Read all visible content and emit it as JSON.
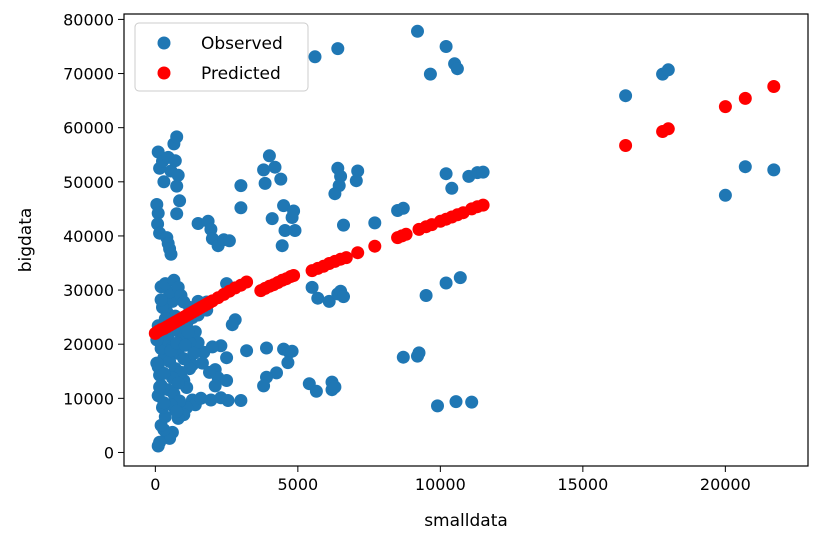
{
  "chart_data": {
    "type": "scatter",
    "xlabel": "smalldata",
    "ylabel": "bigdata",
    "xlim": [
      -1100,
      22900
    ],
    "ylim": [
      -2500,
      81000
    ],
    "xticks": [
      0,
      5000,
      10000,
      15000,
      20000
    ],
    "yticks": [
      0,
      10000,
      20000,
      30000,
      40000,
      50000,
      60000,
      70000,
      80000
    ],
    "grid": false,
    "legend_position": "top-left",
    "series": [
      {
        "name": "Observed",
        "color": "#1f77b4",
        "points": [
          [
            9200,
            77800
          ],
          [
            10200,
            75000
          ],
          [
            6400,
            74600
          ],
          [
            5600,
            73100
          ],
          [
            10500,
            71800
          ],
          [
            10600,
            70900
          ],
          [
            9650,
            69900
          ],
          [
            16500,
            65900
          ],
          [
            17800,
            69900
          ],
          [
            18000,
            70700
          ],
          [
            20000,
            47500
          ],
          [
            20700,
            52800
          ],
          [
            21700,
            52200
          ],
          [
            100,
            55500
          ],
          [
            150,
            52500
          ],
          [
            250,
            53800
          ],
          [
            300,
            50000
          ],
          [
            450,
            54500
          ],
          [
            550,
            52000
          ],
          [
            650,
            57000
          ],
          [
            750,
            58300
          ],
          [
            700,
            53900
          ],
          [
            800,
            51200
          ],
          [
            750,
            49200
          ],
          [
            850,
            46500
          ],
          [
            750,
            44100
          ],
          [
            50,
            45800
          ],
          [
            100,
            44200
          ],
          [
            80,
            42200
          ],
          [
            150,
            40500
          ],
          [
            400,
            39700
          ],
          [
            450,
            38600
          ],
          [
            500,
            37600
          ],
          [
            550,
            36600
          ],
          [
            1500,
            42300
          ],
          [
            1850,
            42700
          ],
          [
            1950,
            41200
          ],
          [
            2000,
            39500
          ],
          [
            2200,
            38200
          ],
          [
            2400,
            39300
          ],
          [
            2600,
            39100
          ],
          [
            3000,
            49300
          ],
          [
            3000,
            45200
          ],
          [
            3800,
            52200
          ],
          [
            3850,
            49700
          ],
          [
            4000,
            54800
          ],
          [
            4200,
            52700
          ],
          [
            4400,
            50500
          ],
          [
            4100,
            43200
          ],
          [
            4500,
            45600
          ],
          [
            4550,
            41000
          ],
          [
            4800,
            43400
          ],
          [
            4850,
            44600
          ],
          [
            4900,
            41000
          ],
          [
            4450,
            38200
          ],
          [
            6400,
            52500
          ],
          [
            6500,
            51000
          ],
          [
            6450,
            49300
          ],
          [
            6300,
            47800
          ],
          [
            7100,
            52000
          ],
          [
            7050,
            50200
          ],
          [
            6600,
            42000
          ],
          [
            7700,
            42400
          ],
          [
            8500,
            44700
          ],
          [
            8700,
            45100
          ],
          [
            10200,
            51500
          ],
          [
            10400,
            48800
          ],
          [
            11000,
            51000
          ],
          [
            11300,
            51700
          ],
          [
            11500,
            51800
          ],
          [
            5500,
            30500
          ],
          [
            5700,
            28500
          ],
          [
            6100,
            27900
          ],
          [
            6400,
            29300
          ],
          [
            6500,
            29800
          ],
          [
            6600,
            28800
          ],
          [
            10200,
            31300
          ],
          [
            10700,
            32300
          ],
          [
            9500,
            29000
          ],
          [
            8700,
            17600
          ],
          [
            9200,
            17800
          ],
          [
            9250,
            18400
          ],
          [
            9900,
            8600
          ],
          [
            10550,
            9400
          ],
          [
            11100,
            9300
          ],
          [
            5400,
            12700
          ],
          [
            5650,
            11300
          ],
          [
            6200,
            13000
          ],
          [
            6200,
            11600
          ],
          [
            6300,
            12100
          ],
          [
            4500,
            19100
          ],
          [
            4700,
            18500
          ],
          [
            4800,
            18700
          ],
          [
            4650,
            16600
          ],
          [
            4250,
            14700
          ],
          [
            3900,
            13900
          ],
          [
            3800,
            12300
          ],
          [
            3900,
            19300
          ],
          [
            3200,
            18800
          ],
          [
            2300,
            19700
          ],
          [
            2500,
            17500
          ],
          [
            2100,
            15300
          ],
          [
            2200,
            13800
          ],
          [
            2500,
            13300
          ],
          [
            2100,
            12300
          ],
          [
            1950,
            9700
          ],
          [
            2300,
            10100
          ],
          [
            2550,
            9600
          ],
          [
            3000,
            9600
          ],
          [
            2800,
            24500
          ],
          [
            2700,
            23600
          ],
          [
            2500,
            31200
          ],
          [
            1400,
            22300
          ],
          [
            1500,
            25400
          ],
          [
            1800,
            26300
          ],
          [
            1700,
            18500
          ],
          [
            1500,
            20300
          ],
          [
            1300,
            16200
          ],
          [
            1200,
            15500
          ],
          [
            1000,
            13300
          ],
          [
            1100,
            12000
          ],
          [
            1300,
            9700
          ],
          [
            1400,
            8800
          ],
          [
            1600,
            10000
          ],
          [
            1100,
            8300
          ],
          [
            1000,
            7000
          ],
          [
            800,
            6300
          ],
          [
            700,
            8000
          ],
          [
            600,
            3700
          ],
          [
            500,
            2600
          ],
          [
            400,
            3200
          ],
          [
            300,
            4200
          ],
          [
            200,
            5000
          ],
          [
            100,
            1200
          ],
          [
            150,
            1900
          ],
          [
            350,
            6600
          ],
          [
            250,
            8300
          ],
          [
            100,
            10500
          ],
          [
            200,
            12400
          ],
          [
            150,
            14300
          ],
          [
            100,
            15800
          ],
          [
            300,
            17500
          ],
          [
            200,
            19200
          ],
          [
            400,
            20800
          ],
          [
            300,
            22500
          ],
          [
            500,
            24100
          ],
          [
            400,
            26000
          ],
          [
            600,
            27900
          ],
          [
            500,
            29600
          ],
          [
            200,
            30600
          ],
          [
            350,
            31200
          ],
          [
            650,
            31800
          ],
          [
            800,
            30500
          ],
          [
            900,
            29000
          ],
          [
            1000,
            27800
          ],
          [
            1200,
            26800
          ],
          [
            1500,
            27900
          ],
          [
            1800,
            27800
          ],
          [
            700,
            25200
          ],
          [
            900,
            24300
          ],
          [
            1100,
            23800
          ],
          [
            1300,
            24900
          ],
          [
            800,
            22400
          ],
          [
            1000,
            21600
          ],
          [
            1200,
            20300
          ],
          [
            600,
            19300
          ],
          [
            800,
            18300
          ],
          [
            1000,
            17300
          ],
          [
            500,
            16800
          ],
          [
            700,
            15500
          ],
          [
            900,
            14800
          ],
          [
            600,
            13800
          ],
          [
            800,
            12800
          ],
          [
            450,
            11600
          ],
          [
            650,
            10800
          ],
          [
            850,
            9500
          ],
          [
            550,
            8800
          ],
          [
            750,
            7600
          ],
          [
            300,
            14600
          ],
          [
            150,
            12100
          ],
          [
            300,
            9200
          ],
          [
            50,
            16500
          ],
          [
            50,
            20800
          ],
          [
            100,
            23400
          ],
          [
            250,
            26800
          ],
          [
            200,
            28200
          ],
          [
            350,
            24700
          ],
          [
            450,
            21800
          ],
          [
            550,
            18800
          ],
          [
            650,
            22900
          ],
          [
            750,
            20200
          ],
          [
            1150,
            22200
          ],
          [
            1050,
            19800
          ],
          [
            1350,
            18300
          ],
          [
            1650,
            16500
          ],
          [
            1900,
            14800
          ],
          [
            2000,
            19500
          ]
        ]
      },
      {
        "name": "Predicted",
        "color": "#ff0000",
        "points": [
          [
            0,
            22000
          ],
          [
            100,
            22400
          ],
          [
            200,
            22700
          ],
          [
            300,
            22900
          ],
          [
            400,
            23200
          ],
          [
            500,
            23500
          ],
          [
            600,
            23800
          ],
          [
            700,
            24100
          ],
          [
            800,
            24400
          ],
          [
            900,
            24700
          ],
          [
            1000,
            25000
          ],
          [
            1100,
            25300
          ],
          [
            1200,
            25600
          ],
          [
            1300,
            25900
          ],
          [
            1400,
            26200
          ],
          [
            1500,
            26500
          ],
          [
            1600,
            26800
          ],
          [
            1700,
            27100
          ],
          [
            1800,
            27400
          ],
          [
            1900,
            27700
          ],
          [
            2000,
            28000
          ],
          [
            2200,
            28600
          ],
          [
            2400,
            29200
          ],
          [
            2600,
            29800
          ],
          [
            2800,
            30400
          ],
          [
            3000,
            30900
          ],
          [
            3200,
            31500
          ],
          [
            3700,
            29900
          ],
          [
            3850,
            30300
          ],
          [
            4000,
            30700
          ],
          [
            4150,
            31000
          ],
          [
            4300,
            31400
          ],
          [
            4450,
            31800
          ],
          [
            4600,
            32100
          ],
          [
            4750,
            32500
          ],
          [
            4850,
            32700
          ],
          [
            5500,
            33600
          ],
          [
            5700,
            34000
          ],
          [
            5900,
            34400
          ],
          [
            6100,
            34900
          ],
          [
            6300,
            35300
          ],
          [
            6500,
            35700
          ],
          [
            6700,
            36000
          ],
          [
            7100,
            36900
          ],
          [
            7700,
            38100
          ],
          [
            8500,
            39700
          ],
          [
            8650,
            40000
          ],
          [
            8800,
            40300
          ],
          [
            9250,
            41200
          ],
          [
            9500,
            41700
          ],
          [
            9700,
            42100
          ],
          [
            10000,
            42700
          ],
          [
            10200,
            43100
          ],
          [
            10400,
            43500
          ],
          [
            10600,
            43900
          ],
          [
            10800,
            44300
          ],
          [
            11100,
            45000
          ],
          [
            11300,
            45400
          ],
          [
            11500,
            45700
          ],
          [
            16500,
            56700
          ],
          [
            17800,
            59300
          ],
          [
            18000,
            59800
          ],
          [
            20000,
            63900
          ],
          [
            20700,
            65400
          ],
          [
            21700,
            67600
          ]
        ]
      }
    ]
  }
}
